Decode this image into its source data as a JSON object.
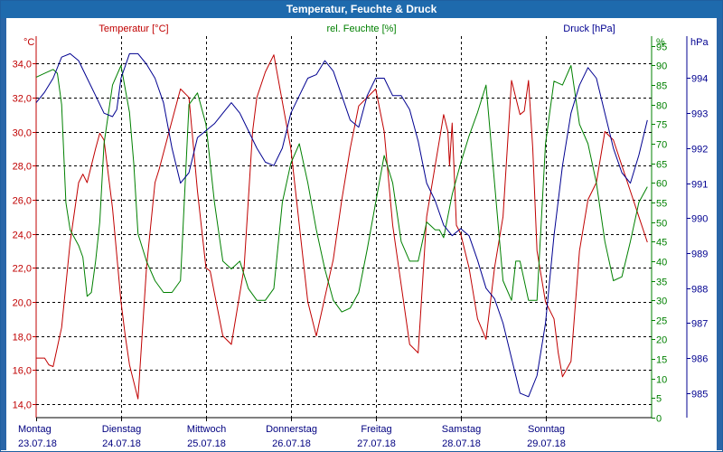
{
  "window": {
    "title": "Temperatur, Feuchte & Druck"
  },
  "colors": {
    "temperature": "#c00000",
    "humidity": "#008000",
    "pressure": "#000090",
    "grid": "#000000",
    "title_bar": "#1e6aad"
  },
  "chart_data": {
    "type": "line",
    "title": "Temperatur, Feuchte & Druck",
    "x_days": [
      {
        "weekday": "Montag",
        "date": "23.07.18"
      },
      {
        "weekday": "Dienstag",
        "date": "24.07.18"
      },
      {
        "weekday": "Mittwoch",
        "date": "25.07.18"
      },
      {
        "weekday": "Donnerstag",
        "date": "26.07.18"
      },
      {
        "weekday": "Freitag",
        "date": "27.07.18"
      },
      {
        "weekday": "Samstag",
        "date": "28.07.18"
      },
      {
        "weekday": "Sonntag",
        "date": "29.07.18"
      }
    ],
    "x_unit": "days since 23.07.18 00:00",
    "xlim": [
      0,
      7.25
    ],
    "axes": {
      "temperature": {
        "label": "Temperatur [°C]",
        "unit": "°C",
        "ylim": [
          13.2,
          35.6
        ],
        "ticks": [
          "14,0",
          "16,0",
          "18,0",
          "20,0",
          "22,0",
          "24,0",
          "26,0",
          "28,0",
          "30,0",
          "32,0",
          "34,0"
        ]
      },
      "humidity": {
        "label": "rel. Feuchte [%]",
        "unit": "%",
        "ylim": [
          0,
          97.5
        ],
        "ticks": [
          "0",
          "5",
          "10",
          "15",
          "20",
          "25",
          "30",
          "35",
          "40",
          "45",
          "50",
          "55",
          "60",
          "65",
          "70",
          "75",
          "80",
          "85",
          "90",
          "95"
        ]
      },
      "pressure": {
        "label": "Druck [hPa]",
        "unit": "hPa",
        "ylim": [
          984.3,
          995.2
        ],
        "ticks": [
          "985",
          "986",
          "987",
          "988",
          "989",
          "990",
          "991",
          "992",
          "993",
          "994"
        ]
      }
    },
    "series": [
      {
        "name": "Temperatur",
        "axis": "temperature",
        "color": "#c00000",
        "x": [
          0,
          0.1,
          0.15,
          0.2,
          0.3,
          0.4,
          0.5,
          0.55,
          0.6,
          0.7,
          0.75,
          0.8,
          0.9,
          1.0,
          1.05,
          1.1,
          1.15,
          1.2,
          1.3,
          1.4,
          1.45,
          1.55,
          1.7,
          1.8,
          1.9,
          2.0,
          2.05,
          2.1,
          2.2,
          2.3,
          2.45,
          2.55,
          2.6,
          2.7,
          2.8,
          3.0,
          3.2,
          3.3,
          3.5,
          3.6,
          3.7,
          3.8,
          4.0,
          4.1,
          4.2,
          4.3,
          4.4,
          4.5,
          4.6,
          4.7,
          4.8,
          4.85,
          4.87,
          4.9,
          4.95,
          5.0,
          5.1,
          5.2,
          5.3,
          5.4,
          5.5,
          5.6,
          5.7,
          5.75,
          5.8,
          5.85,
          5.9,
          6.0,
          6.1,
          6.15,
          6.2,
          6.3,
          6.4,
          6.5,
          6.6,
          6.7,
          6.8,
          6.9,
          7.0,
          7.1,
          7.2
        ],
        "values": [
          16.7,
          16.7,
          16.3,
          16.2,
          18.5,
          23.5,
          27.0,
          27.5,
          27.0,
          29.0,
          29.9,
          29.5,
          25.5,
          20.0,
          18.0,
          16.3,
          15.3,
          14.3,
          22.0,
          27.0,
          27.8,
          29.7,
          32.5,
          32.0,
          26.5,
          22.0,
          21.8,
          20.5,
          18.0,
          17.5,
          22.0,
          30.0,
          32.0,
          33.5,
          34.5,
          29.0,
          20.0,
          18.0,
          22.5,
          26.0,
          29.0,
          31.5,
          32.5,
          30.0,
          24.5,
          21.0,
          17.5,
          17.0,
          25.0,
          28.0,
          31.0,
          30.0,
          28.0,
          30.5,
          24.5,
          24.0,
          22.0,
          19.0,
          17.8,
          22.0,
          25.0,
          33.0,
          31.0,
          31.2,
          33.0,
          29.0,
          23.0,
          20.0,
          19.0,
          17.0,
          15.6,
          16.5,
          23.0,
          26.0,
          27.0,
          30.0,
          29.5,
          28.0,
          26.5,
          25.0,
          23.5
        ]
      },
      {
        "name": "rel. Feuchte",
        "axis": "humidity",
        "color": "#008000",
        "x": [
          0,
          0.1,
          0.2,
          0.25,
          0.3,
          0.35,
          0.4,
          0.45,
          0.5,
          0.55,
          0.6,
          0.65,
          0.7,
          0.75,
          0.8,
          0.9,
          1.0,
          1.1,
          1.15,
          1.2,
          1.3,
          1.4,
          1.5,
          1.6,
          1.7,
          1.8,
          1.9,
          2.0,
          2.1,
          2.2,
          2.3,
          2.4,
          2.5,
          2.6,
          2.7,
          2.8,
          2.9,
          3.0,
          3.1,
          3.2,
          3.3,
          3.4,
          3.5,
          3.6,
          3.7,
          3.8,
          3.9,
          4.0,
          4.1,
          4.2,
          4.3,
          4.4,
          4.5,
          4.6,
          4.65,
          4.7,
          4.75,
          4.8,
          4.9,
          5.0,
          5.1,
          5.2,
          5.3,
          5.4,
          5.5,
          5.6,
          5.65,
          5.7,
          5.8,
          5.9,
          6.0,
          6.1,
          6.2,
          6.3,
          6.4,
          6.5,
          6.6,
          6.7,
          6.8,
          6.9,
          7.0,
          7.1,
          7.2
        ],
        "values": [
          87,
          88,
          89,
          88,
          80,
          55,
          48,
          46,
          44,
          41,
          31,
          32,
          40,
          50,
          70,
          85,
          90,
          78,
          65,
          47,
          40,
          35,
          32,
          32,
          35,
          80,
          83,
          75,
          55,
          40,
          38,
          40,
          33,
          30,
          30,
          33,
          55,
          65,
          70,
          60,
          48,
          38,
          30,
          27,
          28,
          32,
          43,
          55,
          67,
          60,
          45,
          40,
          40,
          50,
          49,
          48,
          48,
          46,
          57,
          65,
          72,
          78,
          85,
          60,
          35,
          30,
          40,
          40,
          30,
          30,
          70,
          86,
          85,
          90,
          75,
          70,
          60,
          45,
          35,
          36,
          45,
          55,
          59
        ]
      },
      {
        "name": "Druck",
        "axis": "pressure",
        "color": "#000090",
        "x": [
          0,
          0.1,
          0.2,
          0.3,
          0.4,
          0.5,
          0.6,
          0.7,
          0.8,
          0.9,
          0.95,
          1.0,
          1.1,
          1.2,
          1.3,
          1.4,
          1.5,
          1.6,
          1.7,
          1.8,
          1.9,
          2.0,
          2.1,
          2.2,
          2.3,
          2.4,
          2.5,
          2.6,
          2.7,
          2.8,
          2.9,
          3.0,
          3.1,
          3.2,
          3.3,
          3.4,
          3.5,
          3.6,
          3.7,
          3.8,
          3.9,
          4.0,
          4.1,
          4.2,
          4.3,
          4.4,
          4.5,
          4.6,
          4.7,
          4.8,
          4.9,
          5.0,
          5.1,
          5.2,
          5.3,
          5.4,
          5.5,
          5.6,
          5.7,
          5.8,
          5.9,
          6.0,
          6.1,
          6.2,
          6.3,
          6.4,
          6.5,
          6.6,
          6.7,
          6.8,
          6.9,
          7.0,
          7.1,
          7.2
        ],
        "values": [
          993.3,
          993.6,
          994.0,
          994.6,
          994.7,
          994.5,
          994.0,
          993.5,
          993.0,
          992.9,
          993.1,
          994.0,
          994.7,
          994.7,
          994.4,
          994.0,
          993.3,
          992.0,
          991.0,
          991.3,
          992.3,
          992.5,
          992.7,
          993.0,
          993.3,
          993.0,
          992.5,
          992.0,
          991.6,
          991.5,
          992.0,
          993.0,
          993.5,
          994.0,
          994.1,
          994.5,
          994.2,
          993.5,
          992.8,
          992.6,
          993.5,
          994.0,
          994.0,
          993.5,
          993.5,
          993.1,
          992.2,
          991.0,
          990.5,
          989.8,
          989.5,
          989.7,
          989.5,
          988.8,
          988.0,
          987.7,
          987.0,
          986.0,
          985.0,
          984.9,
          985.5,
          987.0,
          989.5,
          991.5,
          993.0,
          993.8,
          994.3,
          994.0,
          993.0,
          992.0,
          991.3,
          991.0,
          991.8,
          992.8
        ]
      }
    ]
  }
}
